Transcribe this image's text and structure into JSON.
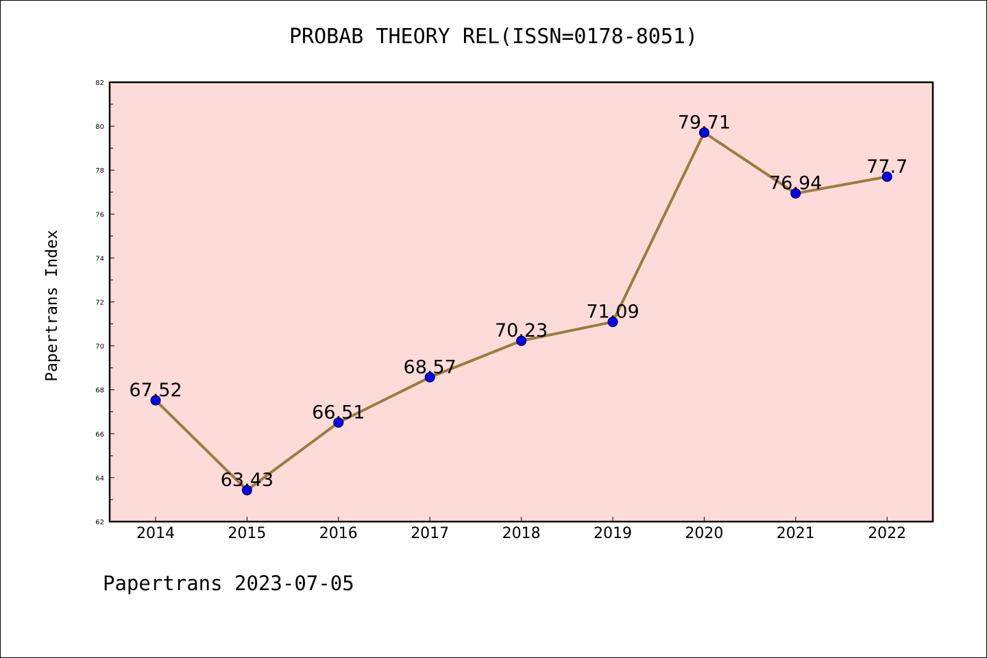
{
  "title": "PROBAB THEORY REL(ISSN=0178-8051)",
  "footer": "Papertrans 2023-07-05",
  "colors": {
    "plot_background": "#fddbd8",
    "line": "#9a7d3c",
    "marker": "#0000ff"
  },
  "chart_data": {
    "type": "line",
    "title": "PROBAB THEORY REL(ISSN=0178-8051)",
    "xlabel": "",
    "ylabel": "Papertrans Index",
    "categories": [
      "2014",
      "2015",
      "2016",
      "2017",
      "2018",
      "2019",
      "2020",
      "2021",
      "2022"
    ],
    "values": [
      67.52,
      63.43,
      66.51,
      68.57,
      70.23,
      71.09,
      79.71,
      76.94,
      77.7
    ],
    "data_labels": [
      "67.52",
      "63.43",
      "66.51",
      "68.57",
      "70.23",
      "71.09",
      "79.71",
      "76.94",
      "77.7"
    ],
    "ylim": [
      62,
      82
    ],
    "yticks": [
      62,
      64,
      66,
      68,
      70,
      72,
      74,
      76,
      78,
      80,
      82
    ],
    "grid": false,
    "legend": "none"
  }
}
